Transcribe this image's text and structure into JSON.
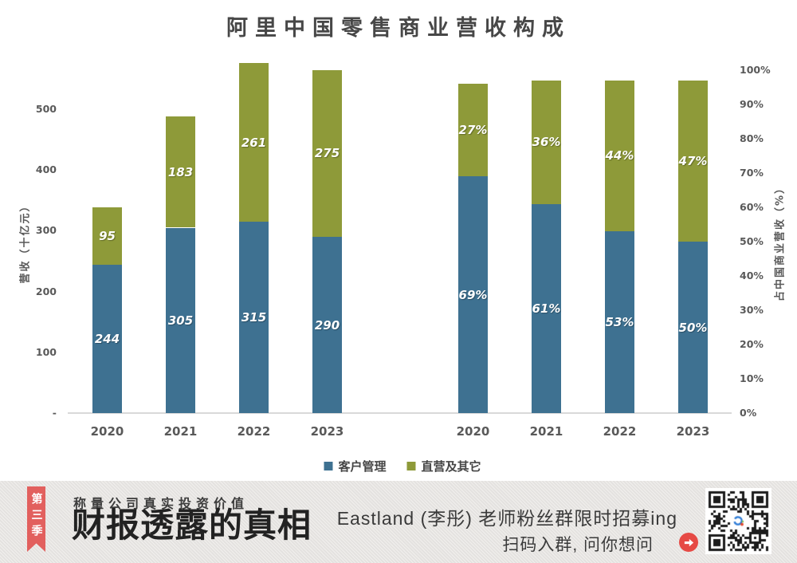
{
  "chart": {
    "title": "阿里中国零售商业营收构成",
    "left_axis_title": "营收（十亿元）",
    "right_axis_title": "占中国商业营收（%）",
    "left_ticks": [
      "500",
      "400",
      "300",
      "200",
      "100",
      "-"
    ],
    "right_ticks": [
      "100%",
      "90%",
      "80%",
      "70%",
      "60%",
      "50%",
      "40%",
      "30%",
      "20%",
      "10%",
      "0%"
    ],
    "legend": [
      {
        "label": "客户管理",
        "color": "#3e7191"
      },
      {
        "label": "直营及其它",
        "color": "#8e9a39"
      }
    ]
  },
  "chart_data": [
    {
      "type": "bar",
      "stacked": true,
      "title": "阿里中国零售商业营收构成",
      "categories": [
        "2020",
        "2021",
        "2022",
        "2023"
      ],
      "series": [
        {
          "name": "客户管理",
          "color": "#3e7191",
          "values": [
            244,
            305,
            315,
            290
          ]
        },
        {
          "name": "直营及其它",
          "color": "#8e9a39",
          "values": [
            95,
            183,
            261,
            275
          ]
        }
      ],
      "xlabel": "",
      "ylabel": "营收（十亿元）",
      "ylim": [
        0,
        500
      ],
      "grid": false,
      "value_labels": true,
      "legend_position": "bottom"
    },
    {
      "type": "bar",
      "stacked": true,
      "categories": [
        "2020",
        "2021",
        "2022",
        "2023"
      ],
      "series": [
        {
          "name": "客户管理",
          "color": "#3e7191",
          "unit": "%",
          "values": [
            69,
            61,
            53,
            50
          ]
        },
        {
          "name": "直营及其它",
          "color": "#8e9a39",
          "unit": "%",
          "values": [
            27,
            36,
            44,
            47
          ]
        }
      ],
      "xlabel": "",
      "ylabel": "占中国商业营收（%）",
      "ylim": [
        0,
        100
      ],
      "grid": false,
      "value_labels": true,
      "legend_position": "bottom"
    }
  ],
  "banner": {
    "season_ribbon": "第三季",
    "tagline": "称量公司真实投资价值",
    "main_title": "财报透露的真相",
    "promo_line1": "Eastland (李彤) 老师粉丝群限时招募ing",
    "promo_line2": "扫码入群, 问你想问",
    "colors": {
      "ribbon": "#e2605e",
      "arrow": "#e64a45",
      "background": "#e9e7e4"
    }
  }
}
